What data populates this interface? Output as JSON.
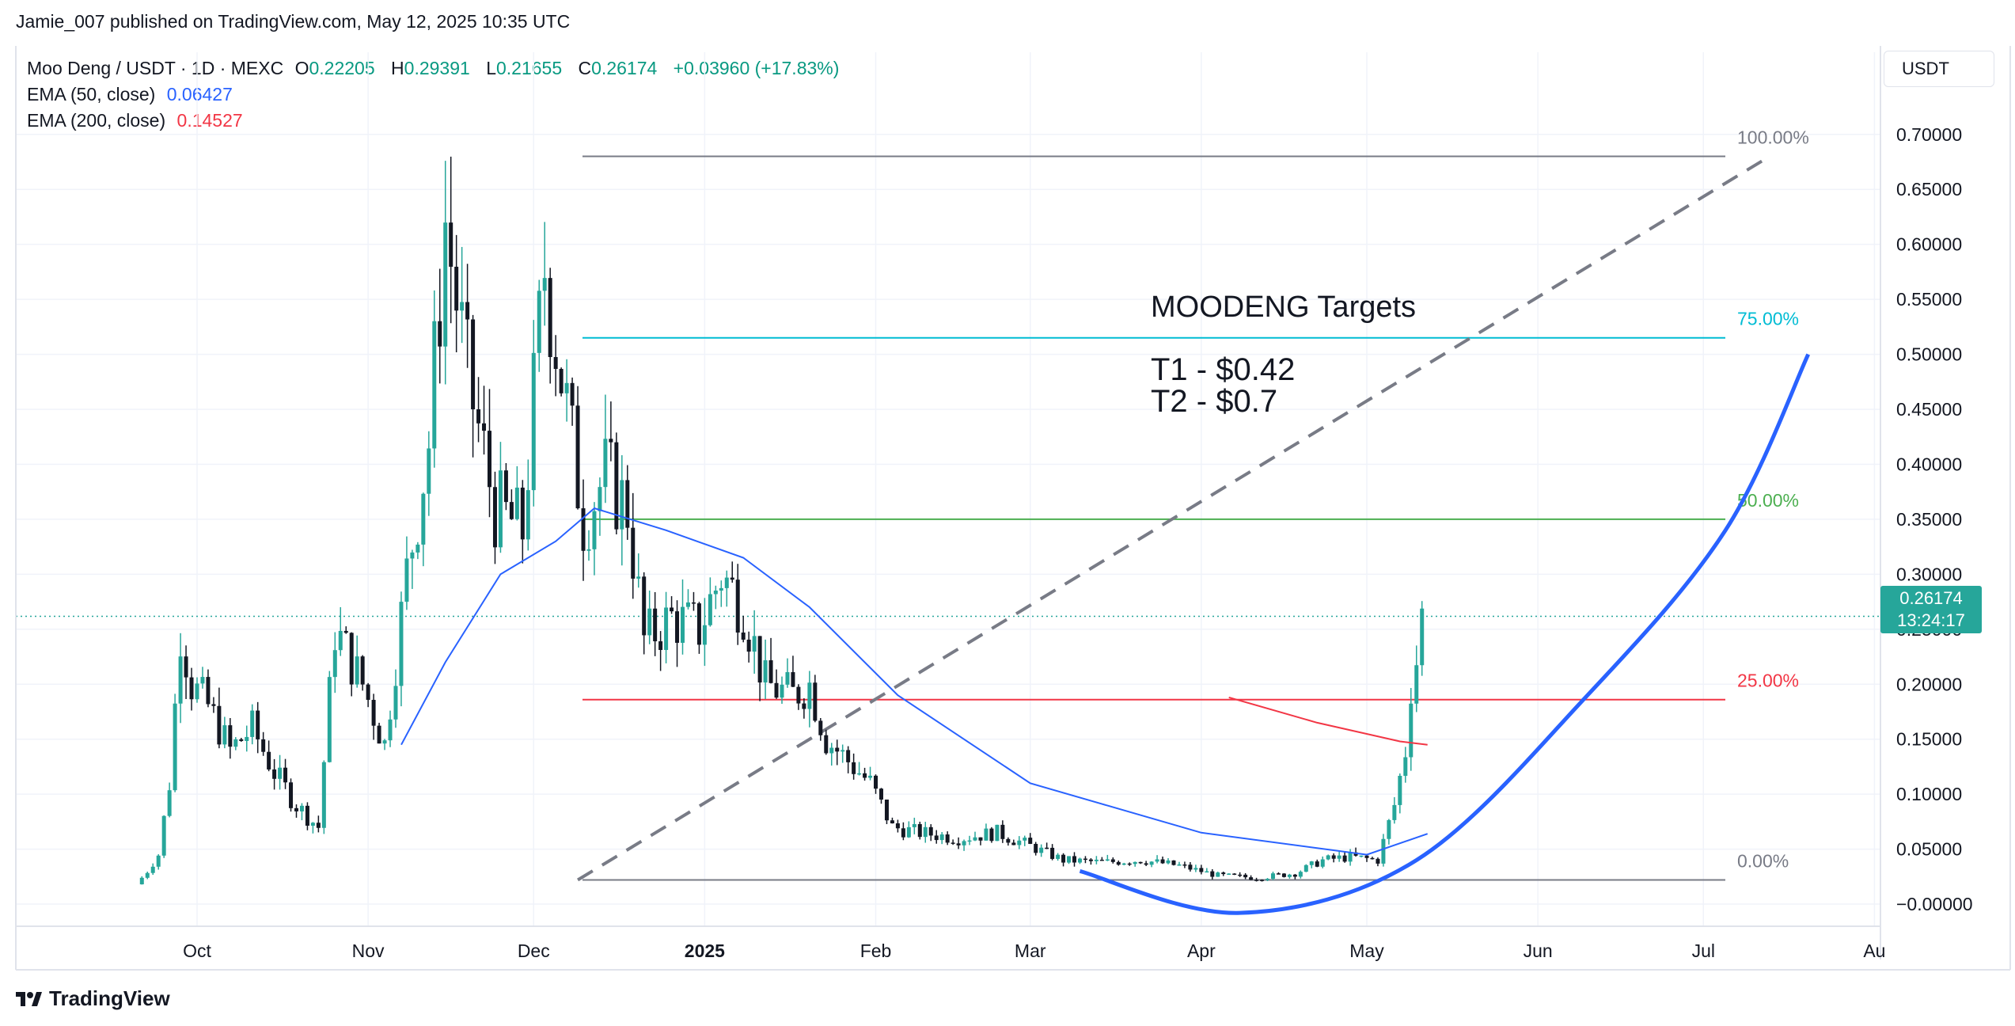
{
  "caption": "Jamie_007 published on TradingView.com, May 12, 2025 10:35 UTC",
  "legend": {
    "symbol": "Moo Deng / USDT · 1D · MEXC",
    "o_label": "O",
    "o": "0.22205",
    "h_label": "H",
    "h": "0.29391",
    "l_label": "L",
    "l": "0.21655",
    "c_label": "C",
    "c": "0.26174",
    "change": "+0.03960 (+17.83%)",
    "ema50_label": "EMA (50, close)",
    "ema50_value": "0.06427",
    "ema200_label": "EMA (200, close)",
    "ema200_value": "0.14527"
  },
  "currency": "USDT",
  "price_tag": {
    "price": "0.26174",
    "countdown": "13:24:17"
  },
  "annotation": {
    "title": "MOODENG Targets",
    "t1": "T1 - $0.42",
    "t2": "T2 - $0.7"
  },
  "fib_labels": [
    "100.00%",
    "75.00%",
    "50.00%",
    "25.00%",
    "0.00%"
  ],
  "brand": "TradingView",
  "colors": {
    "up": "#26a69a",
    "down": "#131722",
    "ema50": "#2962ff",
    "ema200": "#f23645",
    "fib100": "#787b86",
    "fib75": "#00bcd4",
    "fib50": "#4caf50",
    "fib25": "#f23645",
    "fib0": "#787b86",
    "curve": "#2962ff"
  },
  "chart_data": {
    "type": "candlestick",
    "title": "Moo Deng / USDT · 1D · MEXC",
    "y_ticks": [
      "0.70000",
      "0.65000",
      "0.60000",
      "0.55000",
      "0.50000",
      "0.45000",
      "0.40000",
      "0.35000",
      "0.30000",
      "0.25000",
      "0.20000",
      "0.15000",
      "0.10000",
      "0.05000",
      "−0.00000"
    ],
    "ylim": [
      -0.005,
      0.72
    ],
    "x_ticks": [
      "Oct",
      "Nov",
      "Dec",
      "2025",
      "Feb",
      "Mar",
      "Apr",
      "May",
      "Jun",
      "Jul",
      "Au"
    ],
    "x_tick_dates": [
      "2024-10-01",
      "2024-11-01",
      "2024-12-01",
      "2025-01-01",
      "2025-02-01",
      "2025-03-01",
      "2025-04-01",
      "2025-05-01",
      "2025-06-01",
      "2025-07-01",
      "2025-08-01"
    ],
    "grid": true,
    "current_price": 0.26174,
    "closes": [
      {
        "date": "2024-09-21",
        "close": 0.018
      },
      {
        "date": "2024-09-23",
        "close": 0.03
      },
      {
        "date": "2024-09-25",
        "close": 0.045
      },
      {
        "date": "2024-09-27",
        "close": 0.11
      },
      {
        "date": "2024-09-29",
        "close": 0.25
      },
      {
        "date": "2024-10-01",
        "close": 0.2
      },
      {
        "date": "2024-10-04",
        "close": 0.18
      },
      {
        "date": "2024-10-08",
        "close": 0.14
      },
      {
        "date": "2024-10-12",
        "close": 0.16
      },
      {
        "date": "2024-10-16",
        "close": 0.12
      },
      {
        "date": "2024-10-20",
        "close": 0.09
      },
      {
        "date": "2024-10-24",
        "close": 0.07
      },
      {
        "date": "2024-10-27",
        "close": 0.25
      },
      {
        "date": "2024-11-01",
        "close": 0.2
      },
      {
        "date": "2024-11-05",
        "close": 0.145
      },
      {
        "date": "2024-11-09",
        "close": 0.3
      },
      {
        "date": "2024-11-13",
        "close": 0.42
      },
      {
        "date": "2024-11-16",
        "close": 0.62
      },
      {
        "date": "2024-11-20",
        "close": 0.48
      },
      {
        "date": "2024-11-25",
        "close": 0.36
      },
      {
        "date": "2024-11-30",
        "close": 0.34
      },
      {
        "date": "2024-12-04",
        "close": 0.58
      },
      {
        "date": "2024-12-08",
        "close": 0.45
      },
      {
        "date": "2024-12-11",
        "close": 0.35
      },
      {
        "date": "2024-12-15",
        "close": 0.39
      },
      {
        "date": "2024-12-19",
        "close": 0.36
      },
      {
        "date": "2024-12-22",
        "close": 0.24
      },
      {
        "date": "2024-12-27",
        "close": 0.26
      },
      {
        "date": "2025-01-01",
        "close": 0.25
      },
      {
        "date": "2025-01-05",
        "close": 0.3
      },
      {
        "date": "2025-01-09",
        "close": 0.27
      },
      {
        "date": "2025-01-13",
        "close": 0.2
      },
      {
        "date": "2025-01-18",
        "close": 0.19
      },
      {
        "date": "2025-01-21",
        "close": 0.2
      },
      {
        "date": "2025-01-24",
        "close": 0.15
      },
      {
        "date": "2025-01-28",
        "close": 0.13
      },
      {
        "date": "2025-02-01",
        "close": 0.11
      },
      {
        "date": "2025-02-05",
        "close": 0.07
      },
      {
        "date": "2025-02-10",
        "close": 0.065
      },
      {
        "date": "2025-02-17",
        "close": 0.06
      },
      {
        "date": "2025-02-24",
        "close": 0.065
      },
      {
        "date": "2025-03-01",
        "close": 0.055
      },
      {
        "date": "2025-03-08",
        "close": 0.04
      },
      {
        "date": "2025-03-15",
        "close": 0.038
      },
      {
        "date": "2025-03-22",
        "close": 0.04
      },
      {
        "date": "2025-03-29",
        "close": 0.035
      },
      {
        "date": "2025-04-05",
        "close": 0.026
      },
      {
        "date": "2025-04-12",
        "close": 0.024
      },
      {
        "date": "2025-04-19",
        "close": 0.028
      },
      {
        "date": "2025-04-24",
        "close": 0.04
      },
      {
        "date": "2025-04-29",
        "close": 0.043
      },
      {
        "date": "2025-05-04",
        "close": 0.04
      },
      {
        "date": "2025-05-07",
        "close": 0.09
      },
      {
        "date": "2025-05-09",
        "close": 0.14
      },
      {
        "date": "2025-05-10",
        "close": 0.2
      },
      {
        "date": "2025-05-11",
        "close": 0.222
      },
      {
        "date": "2025-05-12",
        "close": 0.26174
      }
    ],
    "series": [
      {
        "name": "EMA (50, close)",
        "points": [
          {
            "date": "2024-11-07",
            "value": 0.145
          },
          {
            "date": "2024-11-15",
            "value": 0.22
          },
          {
            "date": "2024-11-25",
            "value": 0.3
          },
          {
            "date": "2024-12-05",
            "value": 0.33
          },
          {
            "date": "2024-12-12",
            "value": 0.36
          },
          {
            "date": "2024-12-25",
            "value": 0.34
          },
          {
            "date": "2025-01-08",
            "value": 0.315
          },
          {
            "date": "2025-01-20",
            "value": 0.27
          },
          {
            "date": "2025-02-05",
            "value": 0.19
          },
          {
            "date": "2025-03-01",
            "value": 0.11
          },
          {
            "date": "2025-04-01",
            "value": 0.065
          },
          {
            "date": "2025-05-01",
            "value": 0.045
          },
          {
            "date": "2025-05-12",
            "value": 0.064
          }
        ]
      },
      {
        "name": "EMA (200, close)",
        "points": [
          {
            "date": "2025-04-06",
            "value": 0.188
          },
          {
            "date": "2025-04-22",
            "value": 0.165
          },
          {
            "date": "2025-05-07",
            "value": 0.148
          },
          {
            "date": "2025-05-12",
            "value": 0.145
          }
        ]
      }
    ],
    "fib_levels": [
      {
        "label": "100.00%",
        "value": 0.68
      },
      {
        "label": "75.00%",
        "value": 0.515
      },
      {
        "label": "50.00%",
        "value": 0.35
      },
      {
        "label": "25.00%",
        "value": 0.186
      },
      {
        "label": "0.00%",
        "value": 0.022
      }
    ],
    "trend_line": [
      {
        "date": "2024-12-09",
        "value": 0.022
      },
      {
        "date": "2025-07-13",
        "value": 0.68
      }
    ],
    "projection_curve": [
      {
        "date": "2025-03-10",
        "value": 0.03
      },
      {
        "date": "2025-04-08",
        "value": -0.008
      },
      {
        "date": "2025-05-10",
        "value": 0.04
      },
      {
        "date": "2025-06-10",
        "value": 0.19
      },
      {
        "date": "2025-07-05",
        "value": 0.34
      },
      {
        "date": "2025-07-20",
        "value": 0.5
      }
    ]
  }
}
